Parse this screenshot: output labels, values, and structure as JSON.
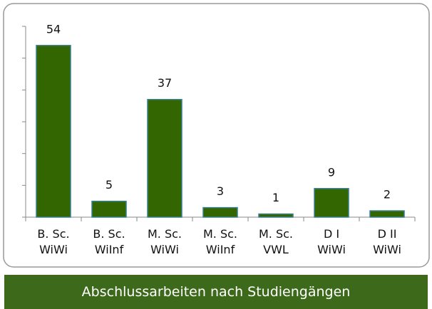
{
  "chart_data": {
    "type": "bar",
    "title": "Abschlussarbeiten nach Studiengängen",
    "categories": [
      "B. Sc.\nWiWi",
      "B. Sc.\nWiInf",
      "M. Sc.\nWiWi",
      "M. Sc.\nWiInf",
      "M. Sc.\nVWL",
      "D I\nWiWi",
      "D II\nWiWi"
    ],
    "values": [
      54,
      5,
      37,
      3,
      1,
      9,
      2
    ],
    "color": "#336600",
    "ylim": [
      0,
      60
    ],
    "yticks": [
      0,
      10,
      20,
      30,
      40,
      50,
      60
    ],
    "grid": false
  }
}
